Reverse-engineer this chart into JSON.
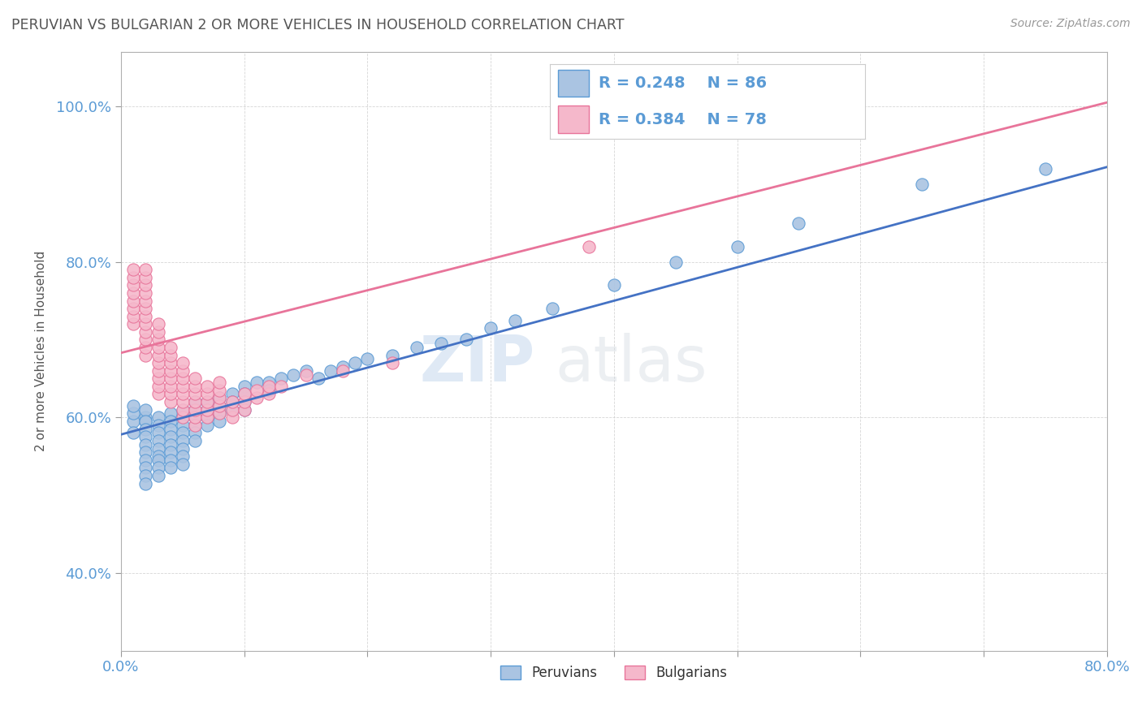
{
  "title": "PERUVIAN VS BULGARIAN 2 OR MORE VEHICLES IN HOUSEHOLD CORRELATION CHART",
  "source_text": "Source: ZipAtlas.com",
  "ylabel": "2 or more Vehicles in Household",
  "xmin": 0.0,
  "xmax": 0.8,
  "ymin": 0.3,
  "ymax": 1.07,
  "peruvian_color": "#aac4e2",
  "bulgarian_color": "#f5b8cb",
  "peruvian_edge_color": "#5b9bd5",
  "bulgarian_edge_color": "#e8749a",
  "peruvian_line_color": "#4472c4",
  "bulgarian_line_color": "#e8749a",
  "legend_peruvian_R": "R = 0.248",
  "legend_peruvian_N": "N = 86",
  "legend_bulgarian_R": "R = 0.384",
  "legend_bulgarian_N": "N = 78",
  "watermark_zip": "ZIP",
  "watermark_atlas": "atlas",
  "peruvian_line_x0": 0.0,
  "peruvian_line_x1": 0.8,
  "peruvian_line_y0": 0.578,
  "peruvian_line_y1": 0.922,
  "bulgarian_line_x0": 0.0,
  "bulgarian_line_x1": 0.8,
  "bulgarian_line_y0": 0.683,
  "bulgarian_line_y1": 1.005,
  "peruvian_x": [
    0.01,
    0.01,
    0.01,
    0.01,
    0.02,
    0.02,
    0.02,
    0.02,
    0.02,
    0.02,
    0.02,
    0.02,
    0.02,
    0.02,
    0.02,
    0.02,
    0.03,
    0.03,
    0.03,
    0.03,
    0.03,
    0.03,
    0.03,
    0.03,
    0.03,
    0.04,
    0.04,
    0.04,
    0.04,
    0.04,
    0.04,
    0.04,
    0.04,
    0.05,
    0.05,
    0.05,
    0.05,
    0.05,
    0.05,
    0.05,
    0.05,
    0.06,
    0.06,
    0.06,
    0.06,
    0.06,
    0.06,
    0.07,
    0.07,
    0.07,
    0.07,
    0.08,
    0.08,
    0.08,
    0.08,
    0.09,
    0.09,
    0.09,
    0.1,
    0.1,
    0.1,
    0.1,
    0.11,
    0.12,
    0.12,
    0.13,
    0.14,
    0.15,
    0.16,
    0.17,
    0.18,
    0.19,
    0.2,
    0.22,
    0.24,
    0.26,
    0.28,
    0.3,
    0.32,
    0.35,
    0.4,
    0.45,
    0.5,
    0.55,
    0.65,
    0.75
  ],
  "peruvian_y": [
    0.595,
    0.605,
    0.615,
    0.58,
    0.6,
    0.595,
    0.61,
    0.595,
    0.585,
    0.575,
    0.565,
    0.555,
    0.545,
    0.535,
    0.525,
    0.515,
    0.6,
    0.59,
    0.58,
    0.57,
    0.56,
    0.55,
    0.545,
    0.535,
    0.525,
    0.605,
    0.595,
    0.585,
    0.575,
    0.565,
    0.555,
    0.545,
    0.535,
    0.61,
    0.6,
    0.59,
    0.58,
    0.57,
    0.56,
    0.55,
    0.54,
    0.62,
    0.61,
    0.6,
    0.59,
    0.58,
    0.57,
    0.62,
    0.61,
    0.6,
    0.59,
    0.625,
    0.615,
    0.605,
    0.595,
    0.63,
    0.62,
    0.61,
    0.64,
    0.63,
    0.62,
    0.61,
    0.645,
    0.645,
    0.635,
    0.65,
    0.655,
    0.66,
    0.65,
    0.66,
    0.665,
    0.67,
    0.675,
    0.68,
    0.69,
    0.695,
    0.7,
    0.715,
    0.725,
    0.74,
    0.77,
    0.8,
    0.82,
    0.85,
    0.9,
    0.92
  ],
  "bulgarian_x": [
    0.01,
    0.01,
    0.01,
    0.01,
    0.01,
    0.01,
    0.01,
    0.01,
    0.02,
    0.02,
    0.02,
    0.02,
    0.02,
    0.02,
    0.02,
    0.02,
    0.02,
    0.02,
    0.02,
    0.02,
    0.03,
    0.03,
    0.03,
    0.03,
    0.03,
    0.03,
    0.03,
    0.03,
    0.03,
    0.03,
    0.04,
    0.04,
    0.04,
    0.04,
    0.04,
    0.04,
    0.04,
    0.04,
    0.05,
    0.05,
    0.05,
    0.05,
    0.05,
    0.05,
    0.05,
    0.05,
    0.06,
    0.06,
    0.06,
    0.06,
    0.06,
    0.06,
    0.06,
    0.07,
    0.07,
    0.07,
    0.07,
    0.07,
    0.08,
    0.08,
    0.08,
    0.08,
    0.08,
    0.09,
    0.09,
    0.09,
    0.1,
    0.1,
    0.1,
    0.11,
    0.11,
    0.12,
    0.12,
    0.13,
    0.15,
    0.18,
    0.22,
    0.38
  ],
  "bulgarian_y": [
    0.72,
    0.73,
    0.74,
    0.75,
    0.76,
    0.77,
    0.78,
    0.79,
    0.68,
    0.69,
    0.7,
    0.71,
    0.72,
    0.73,
    0.74,
    0.75,
    0.76,
    0.77,
    0.78,
    0.79,
    0.63,
    0.64,
    0.65,
    0.66,
    0.67,
    0.68,
    0.69,
    0.7,
    0.71,
    0.72,
    0.62,
    0.63,
    0.64,
    0.65,
    0.66,
    0.67,
    0.68,
    0.69,
    0.6,
    0.61,
    0.62,
    0.63,
    0.64,
    0.65,
    0.66,
    0.67,
    0.59,
    0.6,
    0.61,
    0.62,
    0.63,
    0.64,
    0.65,
    0.6,
    0.61,
    0.62,
    0.63,
    0.64,
    0.605,
    0.615,
    0.625,
    0.635,
    0.645,
    0.6,
    0.61,
    0.62,
    0.61,
    0.62,
    0.63,
    0.625,
    0.635,
    0.63,
    0.64,
    0.64,
    0.655,
    0.66,
    0.67,
    0.82
  ]
}
